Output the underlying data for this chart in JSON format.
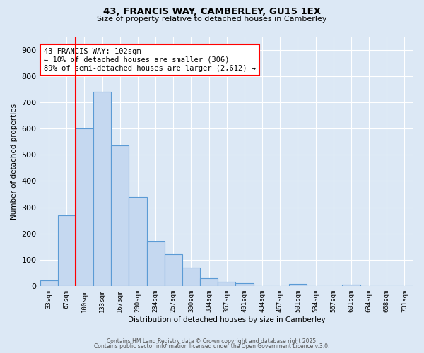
{
  "title1": "43, FRANCIS WAY, CAMBERLEY, GU15 1EX",
  "title2": "Size of property relative to detached houses in Camberley",
  "xlabel": "Distribution of detached houses by size in Camberley",
  "ylabel": "Number of detached properties",
  "categories": [
    "33sqm",
    "67sqm",
    "100sqm",
    "133sqm",
    "167sqm",
    "200sqm",
    "234sqm",
    "267sqm",
    "300sqm",
    "334sqm",
    "367sqm",
    "401sqm",
    "434sqm",
    "467sqm",
    "501sqm",
    "534sqm",
    "567sqm",
    "601sqm",
    "634sqm",
    "668sqm",
    "701sqm"
  ],
  "values": [
    20,
    270,
    600,
    740,
    535,
    340,
    170,
    120,
    70,
    30,
    15,
    10,
    0,
    0,
    8,
    0,
    0,
    5,
    0,
    0,
    0
  ],
  "bar_color": "#c5d8f0",
  "bar_edge_color": "#5b9bd5",
  "red_line_index": 2,
  "annotation_line1": "43 FRANCIS WAY: 102sqm",
  "annotation_line2": "← 10% of detached houses are smaller (306)",
  "annotation_line3": "89% of semi-detached houses are larger (2,612) →",
  "annotation_box_facecolor": "white",
  "annotation_box_edgecolor": "red",
  "ylim": [
    0,
    950
  ],
  "yticks": [
    0,
    100,
    200,
    300,
    400,
    500,
    600,
    700,
    800,
    900
  ],
  "background_color": "#dce8f5",
  "plot_background_color": "#dce8f5",
  "grid_color": "white",
  "footer1": "Contains HM Land Registry data © Crown copyright and database right 2025.",
  "footer2": "Contains public sector information licensed under the Open Government Licence v.3.0."
}
